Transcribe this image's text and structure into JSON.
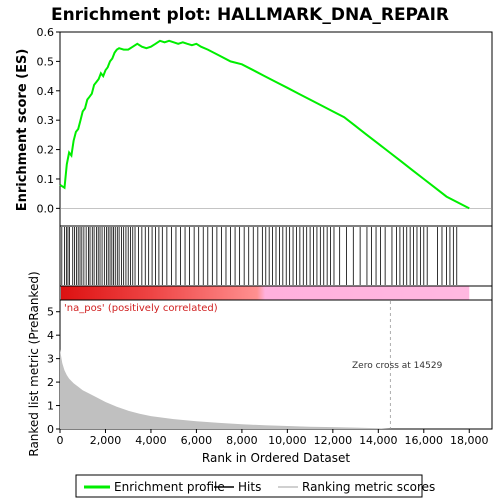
{
  "chart_data": {
    "title": "Enrichment plot: HALLMARK_DNA_REPAIR",
    "type": "line",
    "xlabel": "Rank in Ordered Dataset",
    "xlim": [
      0,
      19000
    ],
    "x_ticks": [
      "0",
      "2,000",
      "4,000",
      "6,000",
      "8,000",
      "10,000",
      "12,000",
      "14,000",
      "16,000",
      "18,000"
    ],
    "top_panel": {
      "ylabel": "Enrichment score (ES)",
      "ylim": [
        -0.06,
        0.6
      ],
      "y_ticks": [
        "0.0",
        "0.1",
        "0.2",
        "0.3",
        "0.4",
        "0.5",
        "0.6"
      ],
      "series": [
        {
          "name": "Enrichment profile",
          "color": "#00ee00",
          "x": [
            0,
            200,
            300,
            400,
            500,
            600,
            700,
            800,
            900,
            1000,
            1100,
            1200,
            1300,
            1400,
            1500,
            1600,
            1700,
            1800,
            1900,
            2000,
            2100,
            2200,
            2300,
            2400,
            2500,
            2600,
            2800,
            3000,
            3200,
            3400,
            3600,
            3800,
            4000,
            4200,
            4400,
            4600,
            4800,
            5000,
            5200,
            5400,
            5600,
            5800,
            6000,
            6200,
            6500,
            7000,
            7500,
            8000,
            8500,
            9000,
            9500,
            10000,
            10500,
            11000,
            11500,
            12000,
            12500,
            13000,
            13500,
            14000,
            14500,
            15000,
            15500,
            16000,
            16500,
            17000,
            17500,
            18000
          ],
          "values": [
            0.08,
            0.07,
            0.15,
            0.19,
            0.18,
            0.23,
            0.26,
            0.27,
            0.3,
            0.33,
            0.34,
            0.37,
            0.38,
            0.39,
            0.42,
            0.43,
            0.44,
            0.46,
            0.45,
            0.47,
            0.48,
            0.5,
            0.51,
            0.53,
            0.54,
            0.545,
            0.54,
            0.54,
            0.55,
            0.56,
            0.55,
            0.545,
            0.55,
            0.56,
            0.57,
            0.565,
            0.57,
            0.565,
            0.56,
            0.565,
            0.56,
            0.555,
            0.56,
            0.55,
            0.54,
            0.52,
            0.5,
            0.49,
            0.47,
            0.45,
            0.43,
            0.41,
            0.39,
            0.37,
            0.35,
            0.33,
            0.31,
            0.28,
            0.25,
            0.22,
            0.19,
            0.16,
            0.13,
            0.1,
            0.07,
            0.04,
            0.02,
            0.0
          ]
        }
      ]
    },
    "hits": {
      "name": "Hits",
      "color": "#000000",
      "positions": [
        80,
        200,
        280,
        350,
        420,
        560,
        640,
        720,
        800,
        880,
        960,
        1050,
        1150,
        1250,
        1320,
        1420,
        1500,
        1600,
        1680,
        1760,
        1850,
        1950,
        2050,
        2120,
        2200,
        2280,
        2350,
        2430,
        2520,
        2600,
        2700,
        2800,
        2900,
        3000,
        3100,
        3200,
        3300,
        3450,
        3600,
        3750,
        3900,
        4050,
        4200,
        4350,
        4500,
        4700,
        4900,
        5100,
        5300,
        5500,
        5700,
        5900,
        6100,
        6300,
        6500,
        6700,
        6900,
        7100,
        7300,
        7500,
        7700,
        7900,
        8100,
        8300,
        8500,
        8700,
        8900,
        9050,
        9200,
        9350,
        9500,
        9650,
        9800,
        9950,
        10100,
        10250,
        10400,
        10550,
        10700,
        10850,
        11000,
        11150,
        11300,
        11450,
        11600,
        11750,
        11900,
        12050,
        12300,
        12600,
        12900,
        13200,
        13500,
        13700,
        13900,
        14100,
        14300,
        14600,
        14800,
        14950,
        15100,
        15250,
        15400,
        15550,
        15700,
        15850,
        16000,
        16150,
        16600,
        16800,
        17000,
        17150,
        17300,
        17450
      ]
    },
    "bottom_panel": {
      "ylabel": "Ranked list metric (PreRanked)",
      "ylim": [
        0,
        5.5
      ],
      "y_ticks": [
        "0",
        "1",
        "2",
        "3",
        "4",
        "5"
      ],
      "series": [
        {
          "name": "Ranking metric scores",
          "color": "#c0c0c0",
          "x": [
            0,
            50,
            100,
            200,
            300,
            400,
            600,
            800,
            1000,
            1300,
            1600,
            2000,
            2500,
            3000,
            3500,
            4000,
            5000,
            6000,
            7000,
            8000,
            9000,
            10000,
            11000,
            12000,
            13000,
            14000,
            14529
          ],
          "values": [
            3.4,
            3.1,
            2.8,
            2.5,
            2.3,
            2.15,
            1.95,
            1.8,
            1.65,
            1.5,
            1.35,
            1.15,
            0.95,
            0.78,
            0.65,
            0.55,
            0.42,
            0.33,
            0.26,
            0.2,
            0.16,
            0.13,
            0.1,
            0.08,
            0.06,
            0.03,
            0.0
          ]
        }
      ],
      "annotations": [
        "Zero cross at 14529"
      ],
      "zero_cross": 14529,
      "positive_label": "'na_pos' (positively correlated)"
    },
    "color_band": {
      "red_end": 9000,
      "pink_end": 18000,
      "colors": [
        "#dd1111",
        "#ff8888",
        "#ffaadd",
        "#ee88cc"
      ]
    },
    "legend": {
      "placement": "bottom",
      "entries": [
        "Enrichment profile",
        "Hits",
        "Ranking metric scores"
      ]
    }
  }
}
